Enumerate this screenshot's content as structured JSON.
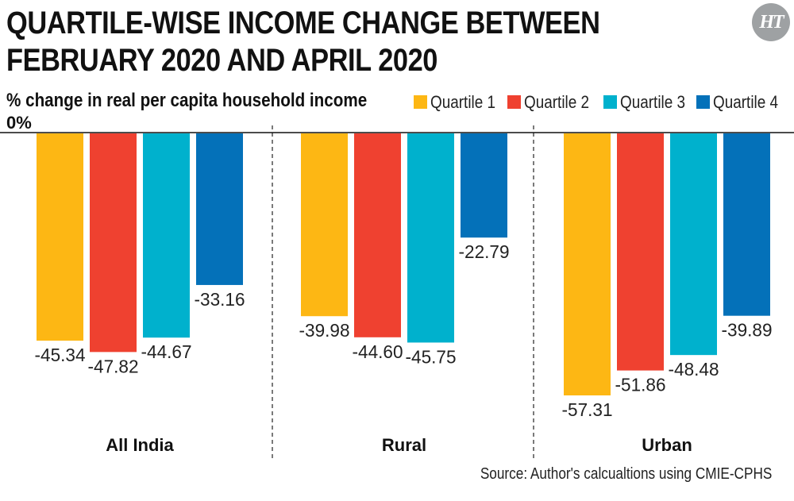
{
  "header": {
    "title_line1": "QUARTILE-WISE INCOME CHANGE BETWEEN",
    "title_line2": "FEBRUARY 2020 AND APRIL 2020",
    "subtitle": "% change in real per capita household income",
    "logo_text": "HT"
  },
  "footer": {
    "source": "Source: Author's calcualtions using CMIE-CPHS"
  },
  "chart_data": {
    "type": "bar",
    "title": "QUARTILE-WISE INCOME CHANGE BETWEEN FEBRUARY 2020 AND APRIL 2020",
    "ylabel": "% change in real per capita household income",
    "zero_label": "0%",
    "categories": [
      "All India",
      "Rural",
      "Urban"
    ],
    "series": [
      {
        "name": "Quartile 1",
        "color": "#FDB714",
        "values": [
          -45.34,
          -39.98,
          -57.31
        ]
      },
      {
        "name": "Quartile 2",
        "color": "#EF4130",
        "values": [
          -47.82,
          -44.6,
          -51.86
        ]
      },
      {
        "name": "Quartile 3",
        "color": "#00B1CD",
        "values": [
          -44.67,
          -45.75,
          -48.48
        ]
      },
      {
        "name": "Quartile 4",
        "color": "#0471B9",
        "values": [
          -33.16,
          -22.79,
          -39.89
        ]
      }
    ],
    "value_labels": [
      [
        "-45.34",
        "-39.98",
        "-57.31"
      ],
      [
        "-47.82",
        "-44.60",
        "-51.86"
      ],
      [
        "-44.67",
        "-45.75",
        "-48.48"
      ],
      [
        "-33.16",
        "-22.79",
        "-39.89"
      ]
    ],
    "ylim": [
      -60,
      0
    ],
    "grid": false,
    "legend_position": "top-right",
    "group_separators": "dashed"
  }
}
